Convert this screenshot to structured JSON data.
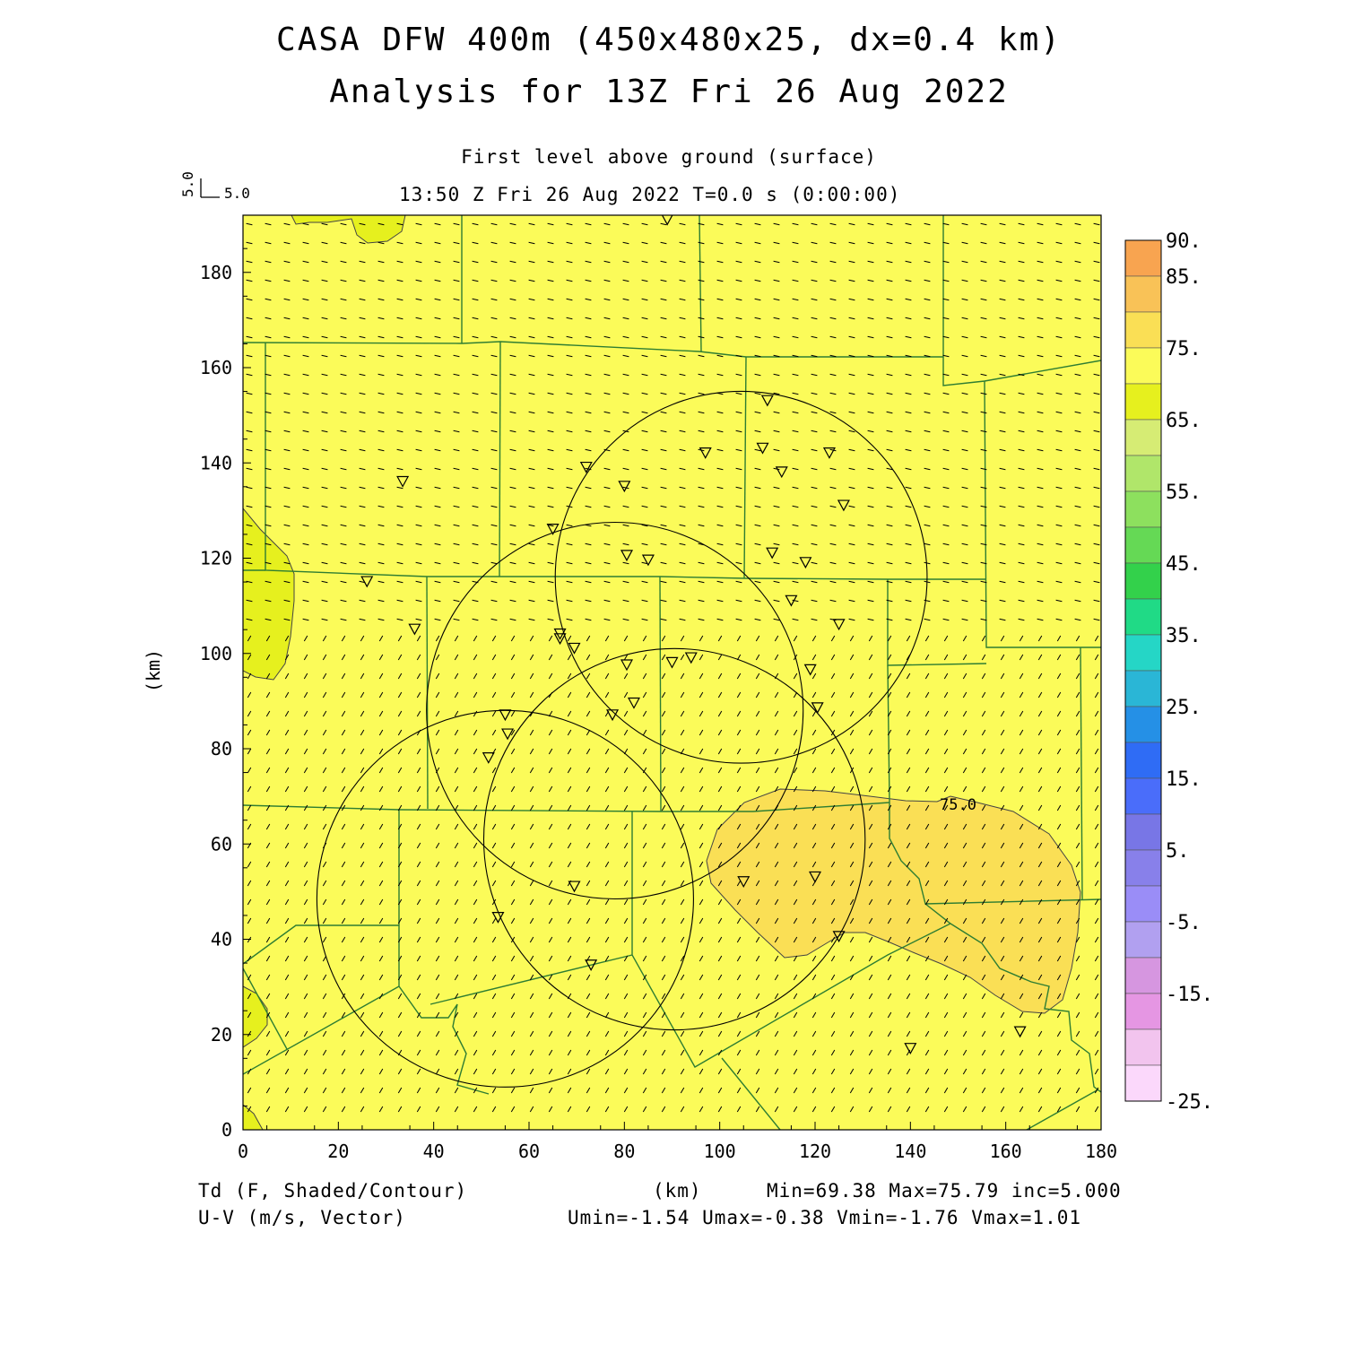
{
  "title": {
    "line1": "CASA DFW 400m (450x480x25, dx=0.4 km)",
    "line2": "Analysis for 13Z Fri 26 Aug 2022"
  },
  "subtitle": {
    "level": "First level above ground (surface)",
    "time": "13:50 Z Fri 26 Aug 2022    T=0.0 s (0:00:00)"
  },
  "vector_key": {
    "v_label": "5.0",
    "u_label": "5.0"
  },
  "footer": {
    "field1": "Td (F, Shaded/Contour)",
    "field2": "U-V (m/s, Vector)",
    "xunits": "(km)",
    "stats1": "Min=69.38 Max=75.79 inc=5.000",
    "stats2": "Umin=-1.54 Umax=-0.38 Vmin=-1.76 Vmax=1.01"
  },
  "map": {
    "xlabel": "",
    "ylabel": "(km)",
    "xlim": [
      0,
      180
    ],
    "ylim": [
      0,
      192
    ],
    "x_ticks": [
      0,
      20,
      40,
      60,
      80,
      100,
      120,
      140,
      160,
      180
    ],
    "y_ticks": [
      0,
      20,
      40,
      60,
      80,
      100,
      120,
      140,
      160,
      180
    ],
    "contour_label": "75.0",
    "background_color": "#fbfb59",
    "shade_colors": {
      "65-70": "#e6f01e",
      "75-80": "#fadf55"
    },
    "radars": [
      {
        "cx": 104.5,
        "cy": 116,
        "r": 39
      },
      {
        "cx": 78,
        "cy": 88,
        "r": 39.5
      },
      {
        "cx": 90.5,
        "cy": 61,
        "r": 40
      },
      {
        "cx": 55,
        "cy": 48.5,
        "r": 39.5
      }
    ],
    "stations": [
      [
        89,
        191
      ],
      [
        110,
        153
      ],
      [
        97,
        142
      ],
      [
        109,
        143
      ],
      [
        123,
        142
      ],
      [
        113,
        138
      ],
      [
        72,
        139
      ],
      [
        33.5,
        136
      ],
      [
        80,
        135
      ],
      [
        126,
        131
      ],
      [
        65,
        126
      ],
      [
        111,
        121
      ],
      [
        80.5,
        120.5
      ],
      [
        85,
        119.5
      ],
      [
        118,
        119
      ],
      [
        26,
        115
      ],
      [
        115,
        111
      ],
      [
        125,
        106
      ],
      [
        36,
        105
      ],
      [
        66.5,
        104
      ],
      [
        66.5,
        103
      ],
      [
        69.5,
        101
      ],
      [
        94,
        99
      ],
      [
        90,
        98
      ],
      [
        80.5,
        97.5
      ],
      [
        119,
        96.5
      ],
      [
        82,
        89.5
      ],
      [
        120.5,
        88.5
      ],
      [
        77.5,
        87
      ],
      [
        55,
        87
      ],
      [
        55.5,
        83
      ],
      [
        51.5,
        78
      ],
      [
        120,
        53
      ],
      [
        105,
        52
      ],
      [
        69.5,
        51
      ],
      [
        53.5,
        44.5
      ],
      [
        125,
        40.5
      ],
      [
        73,
        34.5
      ],
      [
        163,
        20.5
      ],
      [
        140,
        17
      ]
    ]
  },
  "colorbar": {
    "entries": [
      {
        "label": "90.",
        "color": "#f8a450"
      },
      {
        "label": "85.",
        "color": "#f9c257"
      },
      {
        "label": "",
        "color": "#fadf55"
      },
      {
        "label": "75.",
        "color": "#fbfb59"
      },
      {
        "label": "",
        "color": "#e6f01e"
      },
      {
        "label": "65.",
        "color": "#d6ec74"
      },
      {
        "label": "",
        "color": "#b0e66a"
      },
      {
        "label": "55.",
        "color": "#8de05e"
      },
      {
        "label": "",
        "color": "#65d955"
      },
      {
        "label": "45.",
        "color": "#33d14b"
      },
      {
        "label": "",
        "color": "#20da86"
      },
      {
        "label": "35.",
        "color": "#25d6c6"
      },
      {
        "label": "",
        "color": "#2ab6d6"
      },
      {
        "label": "25.",
        "color": "#2590e6"
      },
      {
        "label": "",
        "color": "#2f6cf5"
      },
      {
        "label": "15.",
        "color": "#4a6dfa"
      },
      {
        "label": "",
        "color": "#7876e6"
      },
      {
        "label": "5.",
        "color": "#8880ea"
      },
      {
        "label": "",
        "color": "#9a8df7"
      },
      {
        "label": "-5.",
        "color": "#b1a0f0"
      },
      {
        "label": "",
        "color": "#d696e0"
      },
      {
        "label": "-15.",
        "color": "#e596e3"
      },
      {
        "label": "",
        "color": "#f2c4ee"
      },
      {
        "label": "-25.",
        "color": "#fbd8fb"
      }
    ]
  }
}
